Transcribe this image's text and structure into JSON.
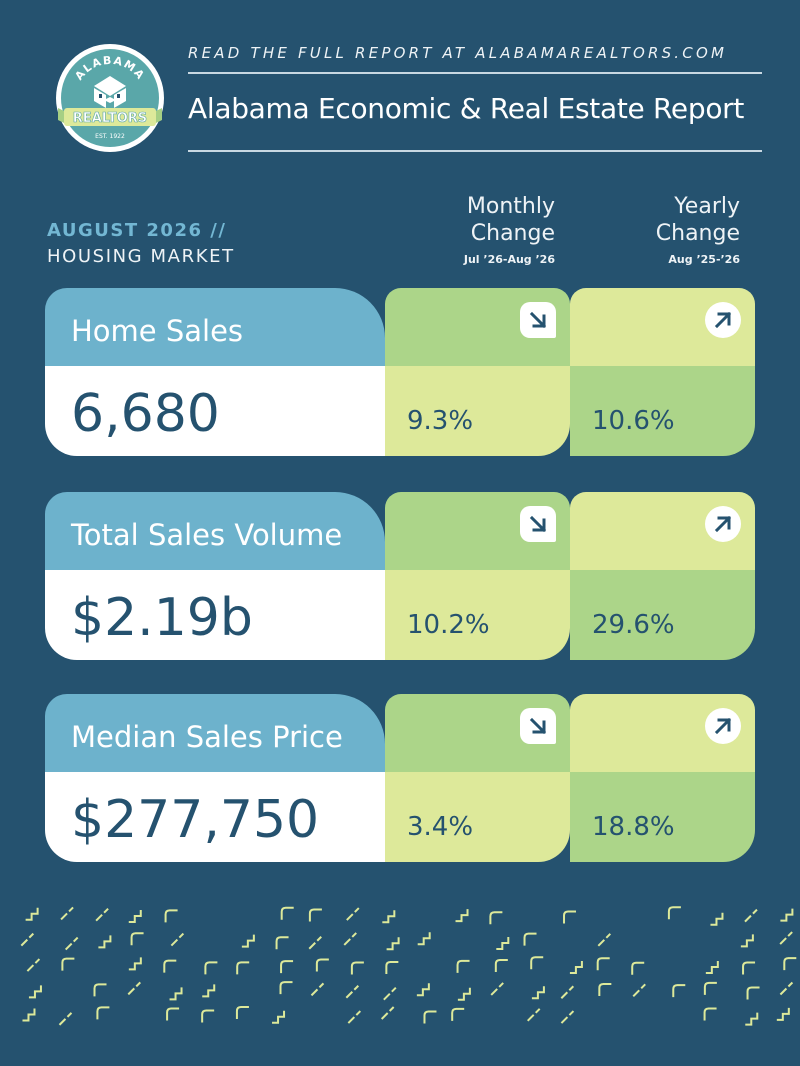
{
  "logo": {
    "top_text": "ALABAMA",
    "banner_text": "REALTORS",
    "est_text": "EST. 1922"
  },
  "header": {
    "tagline": "READ THE FULL REPORT AT ALABAMAREALTORS.COM",
    "title": "Alabama Economic & Real Estate Report"
  },
  "period": {
    "label": "AUGUST 2026 //",
    "section": "HOUSING MARKET"
  },
  "columns": {
    "monthly": {
      "line1": "Monthly",
      "line2": "Change",
      "range": "Jul ’26-Aug ’26"
    },
    "yearly": {
      "line1": "Yearly",
      "line2": "Change",
      "range": "Aug ’25-’26"
    }
  },
  "metrics": [
    {
      "name": "Home Sales",
      "value": "6,680",
      "monthly": "9.3%",
      "monthly_dir": "down",
      "monthly_icon": "arrow-down-right-icon",
      "yearly": "10.6%",
      "yearly_dir": "up",
      "yearly_icon": "arrow-up-right-icon"
    },
    {
      "name": "Total Sales Volume",
      "value": "$2.19b",
      "monthly": "10.2%",
      "monthly_dir": "down",
      "monthly_icon": "arrow-down-right-icon",
      "yearly": "29.6%",
      "yearly_dir": "up",
      "yearly_icon": "arrow-up-right-icon"
    },
    {
      "name": "Median Sales Price",
      "value": "$277,750",
      "monthly": "3.4%",
      "monthly_dir": "down",
      "monthly_icon": "arrow-down-right-icon",
      "yearly": "18.8%",
      "yearly_dir": "up",
      "yearly_icon": "arrow-up-right-icon"
    }
  ],
  "colors": {
    "background": "#25526f",
    "name_box": "#6db2cc",
    "light_green": "#dde99a",
    "mid_green": "#acd589",
    "accent_blue": "#73b7d3",
    "pattern": "#dde99a"
  }
}
